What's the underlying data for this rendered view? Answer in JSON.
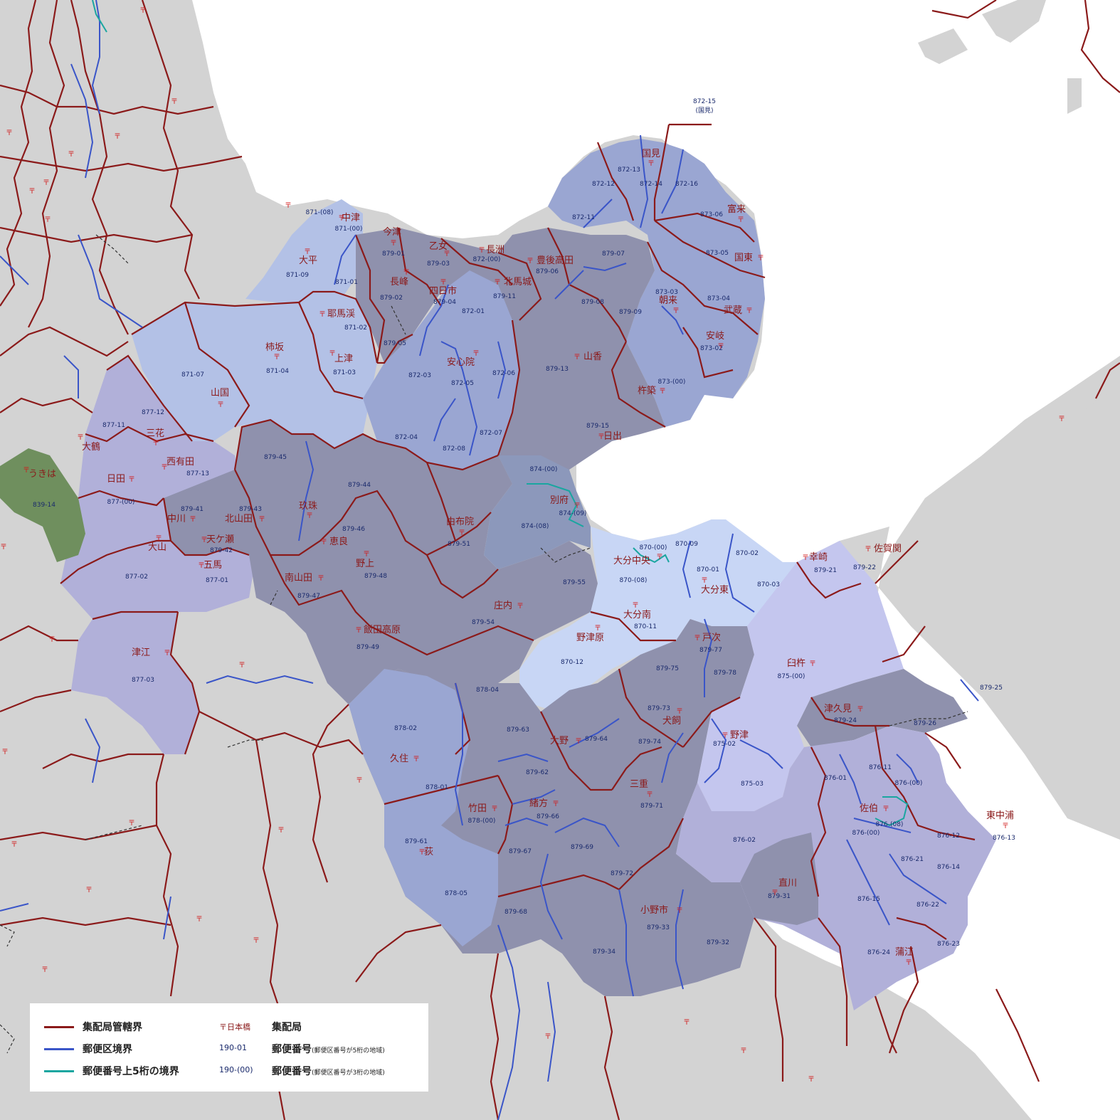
{
  "colors": {
    "background": "#d3d3d3",
    "sea": "#ffffff",
    "office_boundary": "#8b1a1a",
    "postal_boundary": "#3a55c8",
    "upper5_boundary": "#1aa6a0",
    "zone_light": "#b3c1e6",
    "zone_mid": "#9aa6d2",
    "zone_dark": "#8f91ad",
    "zone_purple": "#b1b0d9",
    "zone_pale": "#c8d6f5",
    "zone_green": "#6f8f5e"
  },
  "map": {
    "offices": [
      {
        "label": "中津"
      },
      {
        "label": "今津"
      },
      {
        "label": "乙女"
      },
      {
        "label": "長洲"
      },
      {
        "label": "豊後高田"
      },
      {
        "label": "大平"
      },
      {
        "label": "長峰"
      },
      {
        "label": "四日市"
      },
      {
        "label": "北馬城"
      },
      {
        "label": "耶馬渓"
      },
      {
        "label": "柿坂"
      },
      {
        "label": "上津"
      },
      {
        "label": "安心院"
      },
      {
        "label": "山香"
      },
      {
        "label": "山国"
      },
      {
        "label": "国見"
      },
      {
        "label": "富来"
      },
      {
        "label": "国東"
      },
      {
        "label": "朝来"
      },
      {
        "label": "武蔵"
      },
      {
        "label": "安岐"
      },
      {
        "label": "杵築"
      },
      {
        "label": "日出"
      },
      {
        "label": "三花"
      },
      {
        "label": "大鶴"
      },
      {
        "label": "日田"
      },
      {
        "label": "西有田"
      },
      {
        "label": "うきは"
      },
      {
        "label": "中川"
      },
      {
        "label": "北山田"
      },
      {
        "label": "玖珠"
      },
      {
        "label": "天ケ瀬"
      },
      {
        "label": "大山"
      },
      {
        "label": "五馬"
      },
      {
        "label": "恵良"
      },
      {
        "label": "野上"
      },
      {
        "label": "南山田"
      },
      {
        "label": "由布院"
      },
      {
        "label": "別府"
      },
      {
        "label": "庄内"
      },
      {
        "label": "飯田高原"
      },
      {
        "label": "津江"
      },
      {
        "label": "大分中央"
      },
      {
        "label": "大分東"
      },
      {
        "label": "大分南"
      },
      {
        "label": "野津原"
      },
      {
        "label": "幸崎"
      },
      {
        "label": "佐賀関"
      },
      {
        "label": "戸次"
      },
      {
        "label": "臼杵"
      },
      {
        "label": "大野"
      },
      {
        "label": "犬飼"
      },
      {
        "label": "津久見"
      },
      {
        "label": "野津"
      },
      {
        "label": "久住"
      },
      {
        "label": "竹田"
      },
      {
        "label": "緒方"
      },
      {
        "label": "三重"
      },
      {
        "label": "佐伯"
      },
      {
        "label": "荻"
      },
      {
        "label": "直川"
      },
      {
        "label": "小野市"
      },
      {
        "label": "東中浦"
      },
      {
        "label": "蒲江"
      }
    ],
    "codes": [
      "872-15",
      "(国見)",
      "872-13",
      "872-12",
      "872-14",
      "872-16",
      "873-06",
      "872-11",
      "873-05",
      "871-(08)",
      "871-(00)",
      "879-01",
      "879-03",
      "872-(00)",
      "879-06",
      "879-07",
      "871-09",
      "871-01",
      "879-02",
      "879-04",
      "879-11",
      "873-03",
      "873-04",
      "879-08",
      "872-01",
      "879-09",
      "871-02",
      "879-05",
      "873-02",
      "871-07",
      "871-04",
      "871-03",
      "872-03",
      "872-05",
      "872-06",
      "879-13",
      "873-(00)",
      "877-12",
      "877-11",
      "879-15",
      "872-04",
      "872-07",
      "872-08",
      "879-45",
      "877-13",
      "874-(00)",
      "839-14",
      "877-(00)",
      "879-44",
      "879-41",
      "879-43",
      "874-(09)",
      "874-(08)",
      "879-46",
      "879-51",
      "879-42",
      "870-(00)",
      "870-09",
      "870-02",
      "877-02",
      "879-48",
      "879-21",
      "879-22",
      "870-01",
      "877-01",
      "879-47",
      "879-55",
      "870-(08)",
      "870-03",
      "879-54",
      "870-11",
      "879-49",
      "879-77",
      "877-03",
      "870-12",
      "879-75",
      "879-78",
      "875-(00)",
      "878-04",
      "879-25",
      "879-73",
      "879-24",
      "878-02",
      "879-63",
      "879-64",
      "875-02",
      "879-26",
      "879-74",
      "876-11",
      "876-01",
      "878-01",
      "879-62",
      "876-(00)",
      "875-03",
      "879-71",
      "878-(00)",
      "879-66",
      "876-(08)",
      "876-(00)",
      "876-12",
      "876-13",
      "879-61",
      "879-69",
      "876-02",
      "879-67",
      "876-21",
      "876-14",
      "879-72",
      "878-05",
      "879-31",
      "876-15",
      "876-22",
      "879-68",
      "879-33",
      "879-34",
      "879-32",
      "876-23",
      "876-24"
    ]
  },
  "legend": {
    "office_boundary": "集配局管轄界",
    "postal_boundary": "郵便区境界",
    "upper5_boundary": "郵便番号上5桁の境界",
    "office_sample": "〒日本橋",
    "office_desc": "集配局",
    "code5_sample": "190-01",
    "code5_desc": "郵便番号",
    "code5_note": "(郵便区番号が5桁の地域)",
    "code3_sample": "190-(00)",
    "code3_desc": "郵便番号",
    "code3_note": "(郵便区番号が3桁の地域)"
  }
}
